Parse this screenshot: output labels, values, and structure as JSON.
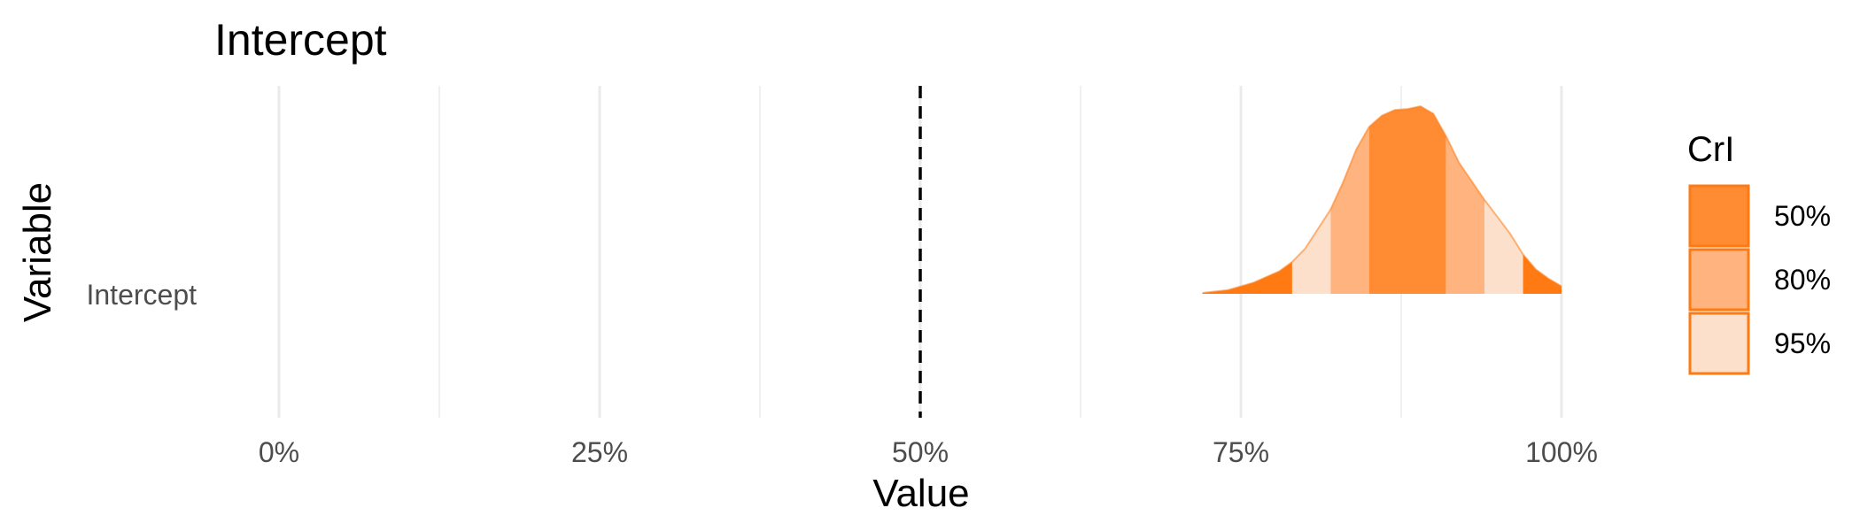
{
  "chart_data": {
    "type": "area",
    "title": "Intercept",
    "xlabel": "Value",
    "ylabel": "Variable",
    "xlim": [
      -0.02,
      1.13
    ],
    "x_ticks": [
      0,
      0.25,
      0.5,
      0.75,
      1.0
    ],
    "x_tick_labels": [
      "0%",
      "25%",
      "50%",
      "75%",
      "100%"
    ],
    "y_categories": [
      "Intercept"
    ],
    "reference_line": {
      "x": 0.5,
      "style": "dashed",
      "color": "#000000"
    },
    "series": [
      {
        "name": "Intercept",
        "density": {
          "x": [
            0.72,
            0.74,
            0.76,
            0.78,
            0.79,
            0.8,
            0.82,
            0.83,
            0.84,
            0.85,
            0.86,
            0.87,
            0.88,
            0.89,
            0.9,
            0.91,
            0.92,
            0.93,
            0.94,
            0.95,
            0.96,
            0.97,
            0.98,
            0.99,
            1.0
          ],
          "y": [
            0.005,
            0.02,
            0.06,
            0.12,
            0.17,
            0.24,
            0.45,
            0.6,
            0.77,
            0.89,
            0.95,
            0.98,
            0.985,
            1.0,
            0.96,
            0.84,
            0.7,
            0.6,
            0.5,
            0.41,
            0.32,
            0.21,
            0.13,
            0.08,
            0.04
          ]
        },
        "intervals": [
          {
            "level": "50%",
            "lower": 0.85,
            "upper": 0.91
          },
          {
            "level": "80%",
            "lower": 0.82,
            "upper": 0.94
          },
          {
            "level": "95%",
            "lower": 0.79,
            "upper": 0.97
          }
        ]
      }
    ],
    "legend": {
      "title": "CrI",
      "position": "right",
      "items": [
        {
          "label": "50%",
          "color": "#ff8c33"
        },
        {
          "label": "80%",
          "color": "#ffb47f"
        },
        {
          "label": "95%",
          "color": "#fde0cc"
        }
      ]
    },
    "colors": {
      "tail": "#ff7a12",
      "outline": "#ff7a12",
      "grid": "#ebebeb"
    },
    "grid": true
  }
}
